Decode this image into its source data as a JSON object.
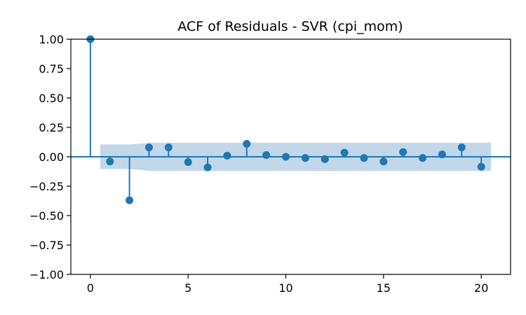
{
  "chart_data": {
    "type": "stem",
    "title": "ACF of Residuals - SVR (cpi_mom)",
    "xlabel": "",
    "ylabel": "",
    "xlim": [
      -1,
      21.5
    ],
    "ylim": [
      -1.0,
      1.0
    ],
    "x_ticks": [
      0,
      5,
      10,
      15,
      20
    ],
    "y_ticks": [
      1.0,
      0.75,
      0.5,
      0.25,
      0.0,
      -0.25,
      -0.5,
      -0.75,
      -1.0
    ],
    "y_tick_labels": [
      "1.00",
      "0.75",
      "0.50",
      "0.25",
      "0.00",
      "−0.25",
      "−0.50",
      "−0.75",
      "−1.00"
    ],
    "lags": [
      0,
      1,
      2,
      3,
      4,
      5,
      6,
      7,
      8,
      9,
      10,
      11,
      12,
      13,
      14,
      15,
      16,
      17,
      18,
      19,
      20
    ],
    "values": [
      1.0,
      -0.04,
      -0.37,
      0.08,
      0.08,
      -0.045,
      -0.09,
      0.01,
      0.11,
      0.015,
      0.0,
      -0.01,
      -0.02,
      0.035,
      -0.01,
      -0.04,
      0.04,
      -0.01,
      0.02,
      0.08,
      -0.085
    ],
    "confidence_band": {
      "x": [
        0.5,
        1,
        2,
        2.5,
        3,
        4,
        5,
        6,
        7,
        8,
        9,
        10,
        11,
        12,
        13,
        14,
        15,
        16,
        17,
        18,
        19,
        20,
        20.5
      ],
      "upper": [
        0.105,
        0.105,
        0.105,
        0.11,
        0.12,
        0.12,
        0.12,
        0.12,
        0.12,
        0.12,
        0.12,
        0.12,
        0.12,
        0.12,
        0.12,
        0.12,
        0.12,
        0.12,
        0.12,
        0.12,
        0.12,
        0.12,
        0.12
      ],
      "lower": [
        -0.105,
        -0.105,
        -0.105,
        -0.11,
        -0.12,
        -0.12,
        -0.12,
        -0.12,
        -0.12,
        -0.12,
        -0.12,
        -0.12,
        -0.12,
        -0.12,
        -0.12,
        -0.12,
        -0.12,
        -0.12,
        -0.12,
        -0.12,
        -0.12,
        -0.12,
        -0.12
      ]
    },
    "colors": {
      "stem": "#1f77b4",
      "band": "#c2d7ea",
      "axis": "#000000"
    },
    "grid": false
  }
}
